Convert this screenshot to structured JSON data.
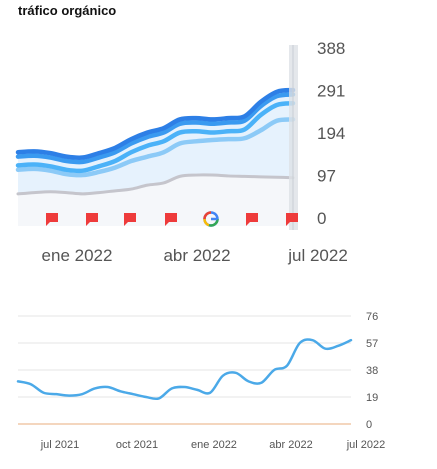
{
  "title": "tráfico orgánico",
  "chart_data": [
    {
      "type": "area",
      "x_ticks": [
        "ene 2022",
        "abr 2022",
        "jul 2022"
      ],
      "y_ticks": [
        "0",
        "97",
        "194",
        "291",
        "388"
      ],
      "ylim": [
        0,
        388
      ],
      "grid": false,
      "x": [
        "dic 2021",
        "dic 2021",
        "dic 2021",
        "ene 2022",
        "ene 2022",
        "ene 2022",
        "feb 2022",
        "feb 2022",
        "mar 2022",
        "mar 2022",
        "abr 2022",
        "abr 2022",
        "may 2022",
        "may 2022",
        "jun 2022",
        "jun 2022",
        "jul 2022",
        "jul 2022"
      ],
      "series": [
        {
          "values": [
            150,
            152,
            148,
            140,
            138,
            148,
            160,
            180,
            195,
            205,
            225,
            228,
            225,
            228,
            232,
            265,
            288,
            292
          ],
          "color": "#2d7fe6"
        },
        {
          "values": [
            140,
            142,
            138,
            130,
            128,
            138,
            150,
            170,
            185,
            195,
            215,
            218,
            215,
            218,
            222,
            255,
            278,
            282
          ],
          "color": "#3a9af0"
        },
        {
          "values": [
            120,
            122,
            118,
            110,
            108,
            118,
            130,
            150,
            165,
            175,
            195,
            198,
            195,
            198,
            202,
            235,
            258,
            262
          ],
          "color": "#4bb2f8"
        },
        {
          "values": [
            110,
            112,
            108,
            100,
            98,
            105,
            115,
            130,
            140,
            150,
            170,
            175,
            178,
            180,
            182,
            200,
            222,
            225
          ],
          "color": "#8ccaf7"
        },
        {
          "values": [
            55,
            58,
            60,
            58,
            55,
            58,
            62,
            66,
            75,
            80,
            95,
            98,
            98,
            96,
            95,
            94,
            93,
            92
          ],
          "color": "#c5c5cc"
        }
      ],
      "event_markers": [
        "flag",
        "flag",
        "flag",
        "flag",
        "google",
        "flag",
        "flag"
      ]
    },
    {
      "type": "line",
      "x_ticks": [
        "jul 2021",
        "oct 2021",
        "ene 2022",
        "abr 2022",
        "jul 2022"
      ],
      "y_ticks": [
        "0",
        "19",
        "38",
        "57",
        "76"
      ],
      "ylim": [
        0,
        76
      ],
      "grid": true,
      "x": [
        "jul 2021",
        "jul 2021",
        "jul 2021",
        "ago 2021",
        "ago 2021",
        "sep 2021",
        "sep 2021",
        "oct 2021",
        "oct 2021",
        "nov 2021",
        "nov 2021",
        "dic 2021",
        "dic 2021",
        "dic 2021",
        "ene 2022",
        "ene 2022",
        "feb 2022",
        "feb 2022",
        "mar 2022",
        "mar 2022",
        "abr 2022",
        "abr 2022",
        "may 2022",
        "may 2022",
        "jun 2022",
        "jun 2022",
        "jul 2022"
      ],
      "series": [
        {
          "values": [
            30,
            28,
            22,
            21,
            20,
            21,
            25,
            26,
            23,
            21,
            19,
            18,
            25,
            26,
            24,
            22,
            34,
            36,
            30,
            29,
            38,
            41,
            57,
            59,
            53,
            55,
            59
          ],
          "color": "#4ba9e8"
        }
      ]
    }
  ]
}
